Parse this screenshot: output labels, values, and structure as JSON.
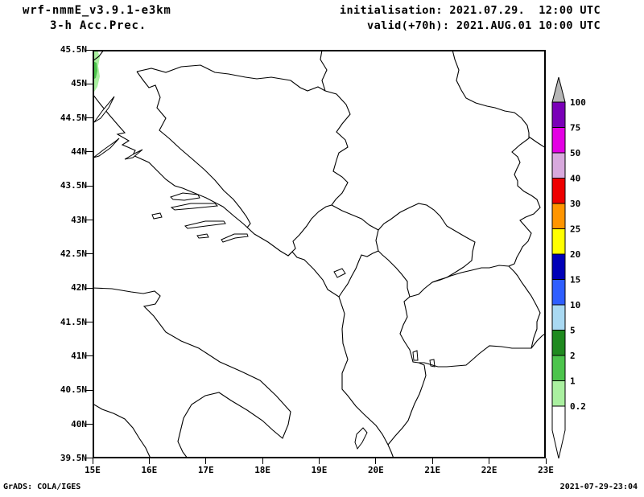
{
  "header": {
    "model": "wrf-nmmE_v3.9.1-e3km",
    "product": "3-h Acc.Prec.",
    "init": "initialisation: 2021.07.29.  12:00 UTC",
    "valid": "valid(+70h): 2021.AUG.01 10:00 UTC"
  },
  "footer": {
    "left": "GrADS: COLA/IGES",
    "right": "2021-07-29-23:04"
  },
  "axes": {
    "y_ticks": [
      "45.5N",
      "45N",
      "44.5N",
      "44N",
      "43.5N",
      "43N",
      "42.5N",
      "42N",
      "41.5N",
      "41N",
      "40.5N",
      "40N",
      "39.5N"
    ],
    "x_ticks": [
      "15E",
      "16E",
      "17E",
      "18E",
      "19E",
      "20E",
      "21E",
      "22E",
      "23E"
    ]
  },
  "colorbar": {
    "labels": [
      "100",
      "75",
      "50",
      "40",
      "30",
      "25",
      "20",
      "15",
      "10",
      "5",
      "2",
      "1",
      "0.2"
    ],
    "colors": [
      "#b6b6b6",
      "#7a00b8",
      "#e400e4",
      "#d8a9dd",
      "#ee0000",
      "#ff9500",
      "#ffff00",
      "#0000b8",
      "#2e5eff",
      "#a9d9f2",
      "#1f8a1f",
      "#4cc44c",
      "#aaf0a0",
      "#ffffff"
    ]
  },
  "map": {
    "precip_patch_light": "#aaf0a0",
    "precip_patch_medium": "#4cc44c"
  },
  "chart_data": {
    "type": "heatmap",
    "title": "3-h Acc.Prec.",
    "model": "wrf-nmmE_v3.9.1-e3km",
    "initialisation": "2021.07.29. 12:00 UTC",
    "valid": "(+70h) 2021.AUG.01 10:00 UTC",
    "x_axis": {
      "label": "",
      "range": [
        15,
        23
      ],
      "ticks": [
        "15E",
        "16E",
        "17E",
        "18E",
        "19E",
        "20E",
        "21E",
        "22E",
        "23E"
      ]
    },
    "y_axis": {
      "label": "",
      "range": [
        39.5,
        45.5
      ],
      "ticks": [
        "39.5N",
        "40N",
        "40.5N",
        "41N",
        "41.5N",
        "42N",
        "42.5N",
        "43N",
        "43.5N",
        "44N",
        "44.5N",
        "45N",
        "45.5N"
      ]
    },
    "legend": {
      "position": "right",
      "levels": [
        0.2,
        1,
        2,
        5,
        10,
        15,
        20,
        25,
        30,
        40,
        50,
        75,
        100
      ],
      "colors_low_to_high": [
        "#ffffff",
        "#aaf0a0",
        "#4cc44c",
        "#1f8a1f",
        "#a9d9f2",
        "#2e5eff",
        "#0000b8",
        "#ffff00",
        "#ff9500",
        "#ee0000",
        "#d8a9dd",
        "#e400e4",
        "#7a00b8",
        "#b6b6b6"
      ]
    },
    "values": [
      {
        "lon": 15.05,
        "lat": 45.35,
        "precip_interval": "0.2-1",
        "note": "light green patch at NW corner of domain"
      },
      {
        "lon": 15.04,
        "lat": 45.22,
        "precip_interval": "1-2",
        "note": "small darker green core inside the patch"
      }
    ],
    "grid": false,
    "region": "Balkans / Adriatic (map background with coastlines and country borders)"
  }
}
